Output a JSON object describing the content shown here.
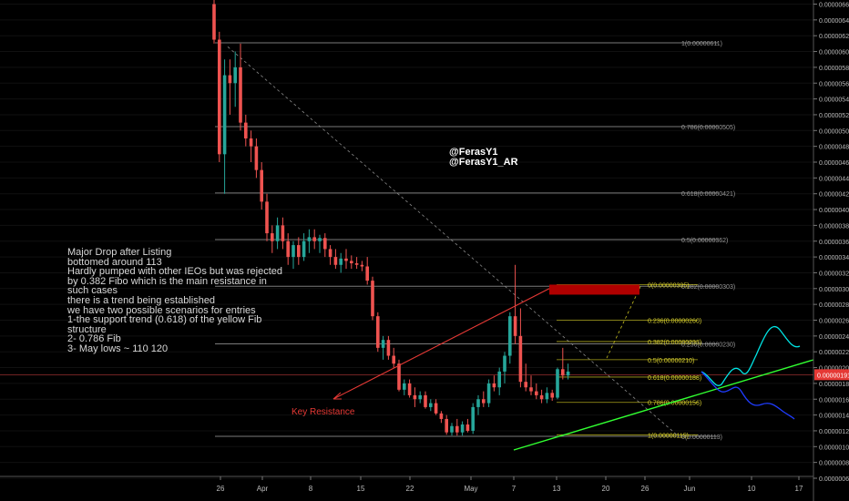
{
  "chart_data": {
    "type": "candlestick",
    "x_tick_labels": [
      "26",
      "Apr",
      "8",
      "15",
      "22",
      "May",
      "7",
      "13",
      "20",
      "26",
      "Jun",
      "10",
      "17"
    ],
    "y_tick_labels": [
      "0.00000060",
      "0.00000080",
      "0.00000100",
      "0.00000120",
      "0.00000140",
      "0.00000160",
      "0.00000180",
      "0.00000200",
      "0.00000220",
      "0.00000240",
      "0.00000260",
      "0.00000280",
      "0.00000300",
      "0.00000320",
      "0.00000340",
      "0.00000360",
      "0.00000380",
      "0.00000400",
      "0.00000420",
      "0.00000440",
      "0.00000460",
      "0.00000480",
      "0.00000500",
      "0.00000520",
      "0.00000540",
      "0.00000560",
      "0.00000580",
      "0.00000600",
      "0.00000620",
      "0.00000640",
      "0.00000660"
    ],
    "ylim": [
      5.2e-07,
      6.7e-06
    ],
    "current_price_label": "0.00000191",
    "current_price": 1.91e-06,
    "fib_large": [
      {
        "label": "1(0.00000611)",
        "value": 6.11e-06
      },
      {
        "label": "0.786(0.00000505)",
        "value": 5.05e-06
      },
      {
        "label": "0.618(0.00000421)",
        "value": 4.21e-06
      },
      {
        "label": "0.5(0.00000362)",
        "value": 3.62e-06
      },
      {
        "label": "0.382(0.00000303)",
        "value": 3.03e-06
      },
      {
        "label": "0.236(0.00000230)",
        "value": 2.3e-06
      },
      {
        "label": "0(0.00000113)",
        "value": 1.13e-06
      }
    ],
    "fib_small": [
      {
        "label": "0(0.00000305)",
        "value": 3.05e-06
      },
      {
        "label": "0.236(0.00000260)",
        "value": 2.6e-06
      },
      {
        "label": "0.382(0.00000233)",
        "value": 2.33e-06
      },
      {
        "label": "0.5(0.00000210)",
        "value": 2.1e-06
      },
      {
        "label": "0.618(0.00000188)",
        "value": 1.88e-06
      },
      {
        "label": "0.786(0.00000156)",
        "value": 1.56e-06
      },
      {
        "label": "1(0.00000115)",
        "value": 1.15e-06
      }
    ],
    "candles": [
      [
        6.6e-06,
        7e-06,
        6.1e-06,
        6.15e-06
      ],
      [
        6.15e-06,
        6.25e-06,
        4.6e-06,
        4.7e-06
      ],
      [
        4.7e-06,
        5.9e-06,
        4.2e-06,
        5.7e-06
      ],
      [
        5.7e-06,
        5.9e-06,
        5.2e-06,
        5.6e-06
      ],
      [
        5.6e-06,
        6e-06,
        5.3e-06,
        5.8e-06
      ],
      [
        5.8e-06,
        6.1e-06,
        5e-06,
        5.1e-06
      ],
      [
        5.1e-06,
        5.2e-06,
        4.8e-06,
        4.9e-06
      ],
      [
        4.9e-06,
        5e-06,
        4.6e-06,
        4.8e-06
      ],
      [
        4.8e-06,
        4.9e-06,
        4.4e-06,
        4.5e-06
      ],
      [
        4.5e-06,
        4.6e-06,
        4e-06,
        4.1e-06
      ],
      [
        4.1e-06,
        4.2e-06,
        3.6e-06,
        3.7e-06
      ],
      [
        3.7e-06,
        3.8e-06,
        3.45e-06,
        3.6e-06
      ],
      [
        3.6e-06,
        3.9e-06,
        3.5e-06,
        3.8e-06
      ],
      [
        3.8e-06,
        3.9e-06,
        3.5e-06,
        3.6e-06
      ],
      [
        3.6e-06,
        3.7e-06,
        3.3e-06,
        3.4e-06
      ],
      [
        3.4e-06,
        3.6e-06,
        3.25e-06,
        3.55e-06
      ],
      [
        3.55e-06,
        3.65e-06,
        3.3e-06,
        3.4e-06
      ],
      [
        3.4e-06,
        3.7e-06,
        3.35e-06,
        3.6e-06
      ],
      [
        3.6e-06,
        3.75e-06,
        3.45e-06,
        3.65e-06
      ],
      [
        3.65e-06,
        3.75e-06,
        3.5e-06,
        3.6e-06
      ],
      [
        3.6e-06,
        3.68e-06,
        3.45e-06,
        3.64e-06
      ],
      [
        3.64e-06,
        3.7e-06,
        3.4e-06,
        3.5e-06
      ],
      [
        3.5e-06,
        3.55e-06,
        3.3e-06,
        3.4e-06
      ],
      [
        3.4e-06,
        3.5e-06,
        3.25e-06,
        3.3e-06
      ],
      [
        3.3e-06,
        3.45e-06,
        3.2e-06,
        3.38e-06
      ],
      [
        3.38e-06,
        3.5e-06,
        3.25e-06,
        3.35e-06
      ],
      [
        3.35e-06,
        3.42e-06,
        3.25e-06,
        3.32e-06
      ],
      [
        3.32e-06,
        3.4e-06,
        3.25e-06,
        3.3e-06
      ],
      [
        3.3e-06,
        3.35e-06,
        3.22e-06,
        3.28e-06
      ],
      [
        3.28e-06,
        3.4e-06,
        3.05e-06,
        3.1e-06
      ],
      [
        3.1e-06,
        3.15e-06,
        2.6e-06,
        2.65e-06
      ],
      [
        2.65e-06,
        2.7e-06,
        2.2e-06,
        2.25e-06
      ],
      [
        2.25e-06,
        2.4e-06,
        2.1e-06,
        2.35e-06
      ],
      [
        2.35e-06,
        2.4e-06,
        2.1e-06,
        2.15e-06
      ],
      [
        2.15e-06,
        2.25e-06,
        2e-06,
        2.05e-06
      ],
      [
        2.05e-06,
        2.1e-06,
        1.7e-06,
        1.72e-06
      ],
      [
        1.72e-06,
        1.85e-06,
        1.65e-06,
        1.8e-06
      ],
      [
        1.8e-06,
        1.85e-06,
        1.62e-06,
        1.65e-06
      ],
      [
        1.65e-06,
        1.75e-06,
        1.5e-06,
        1.6e-06
      ],
      [
        1.6e-06,
        1.7e-06,
        1.55e-06,
        1.65e-06
      ],
      [
        1.65e-06,
        1.7e-06,
        1.48e-06,
        1.5e-06
      ],
      [
        1.5e-06,
        1.6e-06,
        1.45e-06,
        1.55e-06
      ],
      [
        1.55e-06,
        1.6e-06,
        1.4e-06,
        1.42e-06
      ],
      [
        1.42e-06,
        1.45e-06,
        1.3e-06,
        1.35e-06
      ],
      [
        1.35e-06,
        1.4e-06,
        1.15e-06,
        1.18e-06
      ],
      [
        1.18e-06,
        1.3e-06,
        1.14e-06,
        1.26e-06
      ],
      [
        1.26e-06,
        1.35e-06,
        1.14e-06,
        1.18e-06
      ],
      [
        1.18e-06,
        1.32e-06,
        1.14e-06,
        1.28e-06
      ],
      [
        1.28e-06,
        1.35e-06,
        1.18e-06,
        1.2e-06
      ],
      [
        1.2e-06,
        1.55e-06,
        1.16e-06,
        1.5e-06
      ],
      [
        1.5e-06,
        1.65e-06,
        1.4e-06,
        1.6e-06
      ],
      [
        1.6e-06,
        1.7e-06,
        1.5e-06,
        1.55e-06
      ],
      [
        1.55e-06,
        1.85e-06,
        1.5e-06,
        1.8e-06
      ],
      [
        1.8e-06,
        1.9e-06,
        1.7e-06,
        1.75e-06
      ],
      [
        1.75e-06,
        2e-06,
        1.65e-06,
        1.95e-06
      ],
      [
        1.95e-06,
        2.2e-06,
        1.8e-06,
        2.15e-06
      ],
      [
        2.15e-06,
        2.7e-06,
        2.05e-06,
        2.65e-06
      ],
      [
        2.65e-06,
        3.3e-06,
        2.3e-06,
        2.4e-06
      ],
      [
        2.4e-06,
        2.75e-06,
        1.75e-06,
        1.82e-06
      ],
      [
        1.82e-06,
        2.05e-06,
        1.7e-06,
        1.75e-06
      ],
      [
        1.75e-06,
        1.9e-06,
        1.65e-06,
        1.7e-06
      ],
      [
        1.7e-06,
        1.8e-06,
        1.6e-06,
        1.65e-06
      ],
      [
        1.65e-06,
        1.72e-06,
        1.55e-06,
        1.6e-06
      ],
      [
        1.6e-06,
        1.75e-06,
        1.55e-06,
        1.68e-06
      ],
      [
        1.68e-06,
        1.72e-06,
        1.58e-06,
        1.62e-06
      ],
      [
        1.62e-06,
        2e-06,
        1.6e-06,
        1.98e-06
      ],
      [
        1.98e-06,
        2.25e-06,
        1.85e-06,
        1.9e-06
      ],
      [
        1.9e-06,
        2.05e-06,
        1.85e-06,
        1.95e-06
      ]
    ],
    "annotations": {
      "handles": [
        "@FerasY1",
        "@FerasY1_AR"
      ],
      "key_resistance": "Key Resistance",
      "note_lines": [
        "Major Drop after Listing",
        "bottomed around 113",
        "Hardly pumped with other IEOs but was rejected",
        "by 0.382 Fibo which is the main resistance in",
        "such cases",
        "there is a trend being established",
        "we have two possible scenarios for entries",
        "1-the support trend (0.618) of the yellow Fib",
        "structure",
        "2- 0.786 Fib",
        "3- May lows ~ 110 120"
      ]
    },
    "colors": {
      "up": "#26a69a",
      "down": "#ef5350",
      "trendline": "#31ff31",
      "scenario_1": "#00e5e5",
      "scenario_2": "#1f3cff",
      "resistance_box": "#b00000",
      "fib_small": "#c8c020",
      "fib_large": "#7a7a7a",
      "price_line": "#d84040"
    }
  }
}
